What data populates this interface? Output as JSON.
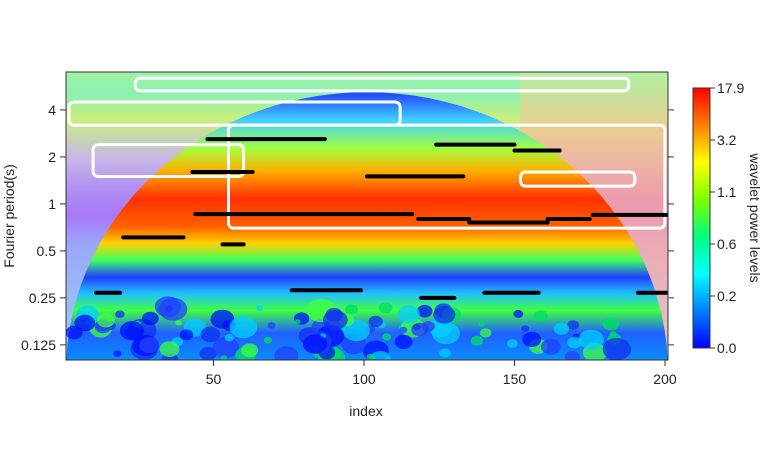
{
  "chart_data": {
    "type": "heatmap",
    "title": "",
    "xlabel": "index",
    "ylabel": "Fourier period(s)",
    "xlim": [
      1,
      201
    ],
    "y_scale": "log2",
    "ylim_period": [
      0.1,
      7.0
    ],
    "x_ticks": [
      50,
      100,
      150,
      200
    ],
    "y_ticks": [
      {
        "value": 4,
        "label": "4"
      },
      {
        "value": 2,
        "label": "2"
      },
      {
        "value": 1,
        "label": "1"
      },
      {
        "value": 0.5,
        "label": "0.5"
      },
      {
        "value": 0.25,
        "label": "0.25"
      },
      {
        "value": 0.125,
        "label": "0.125"
      }
    ],
    "colorbar": {
      "label": "wavelet power levels",
      "tick_labels": [
        "17.9",
        "3.2",
        "1.1",
        "0.6",
        "0.2",
        "0.0"
      ],
      "colors": [
        "#ff0000",
        "#ff8000",
        "#ffff00",
        "#80ff00",
        "#00ff80",
        "#00ffff",
        "#0080ff",
        "#0000ff"
      ]
    },
    "cone_of_influence": true,
    "power_ridges": [
      {
        "x": [
          48,
          87
        ],
        "period": 2.6
      },
      {
        "x": [
          124,
          150
        ],
        "period": 2.4
      },
      {
        "x": [
          150,
          165
        ],
        "period": 2.2
      },
      {
        "x": [
          43,
          63
        ],
        "period": 1.6
      },
      {
        "x": [
          101,
          133
        ],
        "period": 1.5
      },
      {
        "x": [
          44,
          116
        ],
        "period": 0.86
      },
      {
        "x": [
          118,
          135
        ],
        "period": 0.8
      },
      {
        "x": [
          135,
          161
        ],
        "period": 0.76
      },
      {
        "x": [
          161,
          175
        ],
        "period": 0.8
      },
      {
        "x": [
          176,
          201
        ],
        "period": 0.85
      },
      {
        "x": [
          20,
          40
        ],
        "period": 0.61
      },
      {
        "x": [
          53,
          60
        ],
        "period": 0.55
      },
      {
        "x": [
          11,
          19
        ],
        "period": 0.27
      },
      {
        "x": [
          76,
          99
        ],
        "period": 0.28
      },
      {
        "x": [
          119,
          130
        ],
        "period": 0.25
      },
      {
        "x": [
          140,
          158
        ],
        "period": 0.27
      },
      {
        "x": [
          191,
          201
        ],
        "period": 0.27
      }
    ],
    "significance_regions": [
      {
        "x": [
          24,
          188
        ],
        "period_top": 6.4,
        "period_bottom": 5.3
      },
      {
        "x": [
          2,
          112
        ],
        "period_top": 4.5,
        "period_bottom": 3.2
      },
      {
        "x": [
          10,
          60
        ],
        "period_top": 2.4,
        "period_bottom": 1.5
      },
      {
        "x": [
          55,
          200
        ],
        "period_top": 3.2,
        "period_bottom": 0.7
      },
      {
        "x": [
          152,
          190
        ],
        "period_top": 1.6,
        "period_bottom": 1.3
      }
    ]
  }
}
